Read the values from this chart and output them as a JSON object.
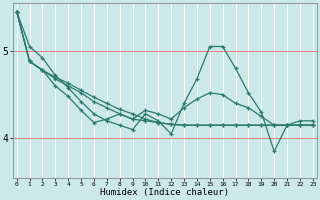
{
  "xlabel": "Humidex (Indice chaleur)",
  "background_color": "#cce8e8",
  "line_color": "#2a7a6e",
  "grid_color_v": "#ffffff",
  "grid_color_h": "#e08080",
  "x_ticks": [
    0,
    1,
    2,
    3,
    4,
    5,
    6,
    7,
    8,
    9,
    10,
    11,
    12,
    13,
    14,
    15,
    16,
    17,
    18,
    19,
    20,
    21,
    22,
    23
  ],
  "y_ticks": [
    4,
    5
  ],
  "ylim": [
    3.55,
    5.55
  ],
  "xlim": [
    -0.3,
    23.3
  ],
  "series": [
    [
      5.45,
      5.05,
      4.92,
      4.72,
      4.58,
      4.42,
      4.28,
      4.2,
      4.15,
      4.1,
      4.28,
      4.2,
      4.05,
      4.4,
      4.68,
      5.05,
      5.05,
      4.8,
      4.52,
      4.3,
      3.85,
      4.15,
      4.2,
      4.2
    ],
    [
      5.45,
      4.88,
      4.78,
      4.6,
      4.48,
      4.32,
      4.18,
      4.22,
      4.28,
      4.22,
      4.32,
      4.28,
      4.22,
      4.35,
      4.45,
      4.52,
      4.5,
      4.4,
      4.35,
      4.25,
      4.15,
      4.15,
      4.15,
      4.15
    ],
    [
      5.45,
      4.88,
      4.78,
      4.68,
      4.6,
      4.52,
      4.42,
      4.35,
      4.28,
      4.22,
      4.2,
      4.18,
      4.16,
      4.15,
      4.15,
      4.15,
      4.15,
      4.15,
      4.15,
      4.15,
      4.15,
      4.15,
      4.15,
      4.15
    ],
    [
      5.45,
      4.88,
      4.78,
      4.7,
      4.63,
      4.55,
      4.47,
      4.4,
      4.33,
      4.28,
      4.22,
      4.18,
      4.16,
      4.15,
      4.15,
      4.15,
      4.15,
      4.15,
      4.15,
      4.15,
      4.15,
      4.15,
      4.15,
      4.15
    ]
  ]
}
